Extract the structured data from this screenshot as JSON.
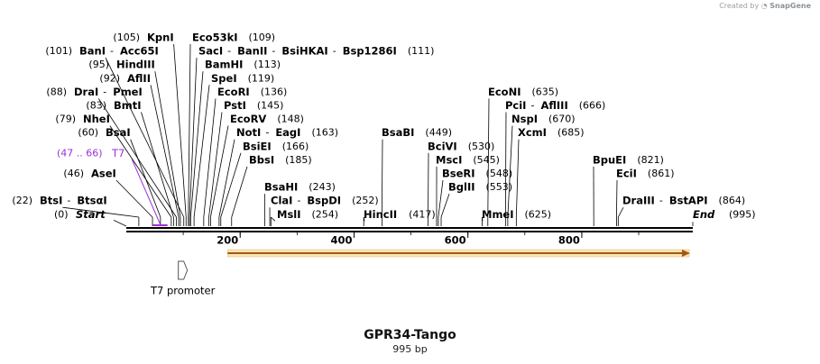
{
  "header": {
    "created_by": "Created by",
    "brand": "SnapGene"
  },
  "plasmid": {
    "name": "GPR34-Tango",
    "length_label": "995 bp",
    "length": 995
  },
  "axis": {
    "ticks": [
      "200",
      "400",
      "600",
      "800"
    ]
  },
  "sites": [
    {
      "row": 0,
      "pos": "(105)",
      "name": "KpnI",
      "bp": 105
    },
    {
      "row": 0,
      "name": "Eco53kI",
      "pos": "(109)",
      "bp": 109
    },
    {
      "row": 1,
      "pos": "(101)",
      "name": "BanI",
      "bp": 101,
      "extra": [
        "Acc65I"
      ]
    },
    {
      "row": 1,
      "name": "SacI",
      "pos": "(111)",
      "bp": 111,
      "extra": [
        "BanII",
        "BsiHKAI",
        "Bsp1286I"
      ]
    },
    {
      "row": 2,
      "pos": "(95)",
      "name": "HindIII",
      "bp": 95
    },
    {
      "row": 2,
      "name": "BamHI",
      "pos": "(113)",
      "bp": 113
    },
    {
      "row": 3,
      "pos": "(92)",
      "name": "AflII",
      "bp": 92
    },
    {
      "row": 3,
      "name": "SpeI",
      "pos": "(119)",
      "bp": 119
    },
    {
      "row": 4,
      "pos": "(88)",
      "name": "DraI",
      "bp": 88,
      "extra": [
        "PmeI"
      ]
    },
    {
      "row": 4,
      "name": "EcoRI",
      "pos": "(136)",
      "bp": 136
    },
    {
      "row": 4,
      "name": "EcoNI",
      "pos": "(635)",
      "bp": 635
    },
    {
      "row": 5,
      "pos": "(83)",
      "name": "BmtI",
      "bp": 83
    },
    {
      "row": 5,
      "name": "PstI",
      "pos": "(145)",
      "bp": 145
    },
    {
      "row": 5,
      "name": "PciI",
      "pos": "(666)",
      "bp": 666,
      "extra": [
        "AflIII"
      ]
    },
    {
      "row": 6,
      "pos": "(79)",
      "name": "NheI",
      "bp": 79
    },
    {
      "row": 6,
      "name": "EcoRV",
      "pos": "(148)",
      "bp": 148
    },
    {
      "row": 6,
      "name": "NspI",
      "pos": "(670)",
      "bp": 670
    },
    {
      "row": 7,
      "pos": "(60)",
      "name": "BsaI",
      "bp": 60
    },
    {
      "row": 7,
      "name": "NotI",
      "pos": "(163)",
      "bp": 163,
      "extra": [
        "EagI"
      ]
    },
    {
      "row": 7,
      "name": "BsaBI",
      "pos": "(449)",
      "bp": 449
    },
    {
      "row": 7,
      "name": "XcmI",
      "pos": "(685)",
      "bp": 685
    },
    {
      "row": 8,
      "name": "BsiEI",
      "pos": "(166)",
      "bp": 166
    },
    {
      "row": 8,
      "name": "BciVI",
      "pos": "(530)",
      "bp": 530
    },
    {
      "row": 9,
      "name": "BbsI",
      "pos": "(185)",
      "bp": 185
    },
    {
      "row": 9,
      "name": "MscI",
      "pos": "(545)",
      "bp": 545
    },
    {
      "row": 9,
      "name": "BpuEI",
      "pos": "(821)",
      "bp": 821
    },
    {
      "row": 10,
      "pos": "(46)",
      "name": "AseI",
      "bp": 46
    },
    {
      "row": 10,
      "name": "BseRI",
      "pos": "(548)",
      "bp": 548
    },
    {
      "row": 10,
      "name": "EciI",
      "pos": "(861)",
      "bp": 861
    },
    {
      "row": 11,
      "name": "BsaHI",
      "pos": "(243)",
      "bp": 243
    },
    {
      "row": 11,
      "name": "BglII",
      "pos": "(553)",
      "bp": 553
    },
    {
      "row": 12,
      "pos": "(22)",
      "name": "BtsI",
      "bp": 22,
      "extra": [
        "BtsαI"
      ]
    },
    {
      "row": 12,
      "name": "ClaI",
      "pos": "(252)",
      "bp": 252,
      "extra": [
        "BspDI"
      ]
    },
    {
      "row": 12,
      "name": "DraIII",
      "pos": "(864)",
      "bp": 864,
      "extra": [
        "BstAPI"
      ]
    },
    {
      "row": 13,
      "name": "MslI",
      "pos": "(254)",
      "bp": 254
    },
    {
      "row": 13,
      "pos": "(417)",
      "name": "HincII",
      "bp": 417
    },
    {
      "row": 13,
      "name": "MmeI",
      "pos": "(625)",
      "bp": 625
    }
  ],
  "ends": {
    "start_label": "Start",
    "start_pos": "(0)",
    "end_label": "End",
    "end_pos": "(995)"
  },
  "primer": {
    "name": "T7",
    "range": "(47 .. 66)",
    "start": 47,
    "end": 66,
    "color": "#9b30d9"
  },
  "features": [
    {
      "name": "T7 promoter",
      "start": 47,
      "end": 66,
      "type": "promoter",
      "color": "#ffffff"
    },
    {
      "name": "",
      "start": 178,
      "end": 995,
      "type": "cds",
      "color": "#f0a030"
    }
  ]
}
